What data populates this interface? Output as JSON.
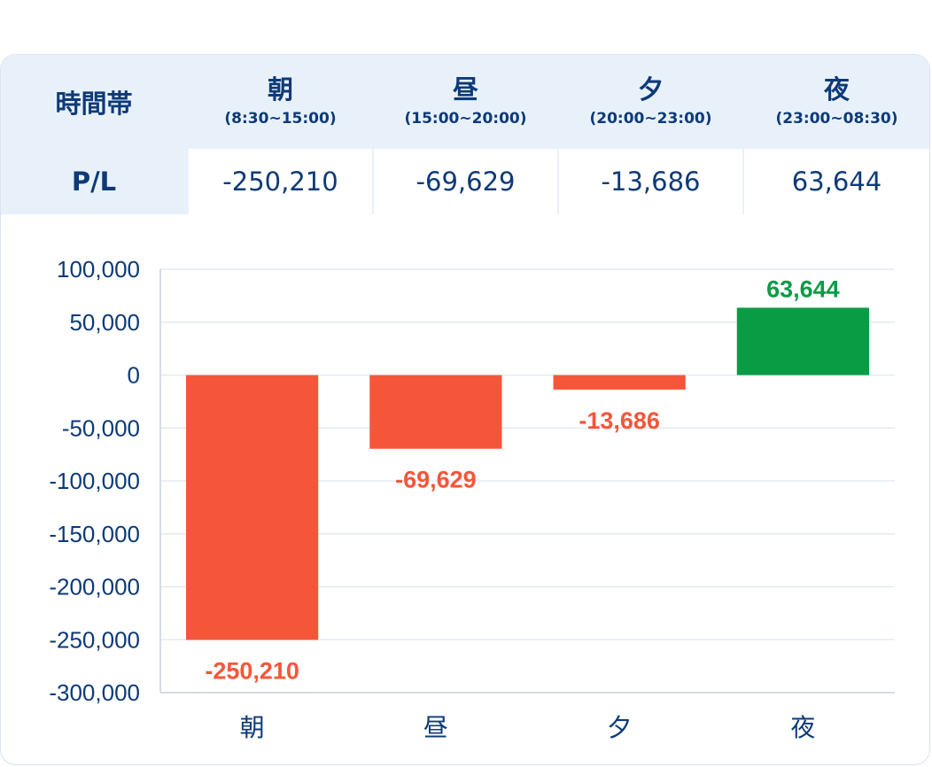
{
  "summary": {
    "header_label": "時間帯",
    "row_label": "P/L",
    "periods": [
      {
        "name": "朝",
        "range": "(8:30~15:00)",
        "pl": "-250,210"
      },
      {
        "name": "昼",
        "range": "(15:00~20:00)",
        "pl": "-69,629"
      },
      {
        "name": "夕",
        "range": "(20:00~23:00)",
        "pl": "-13,686"
      },
      {
        "name": "夜",
        "range": "(23:00~08:30)",
        "pl": "63,644"
      }
    ]
  },
  "colors": {
    "negative": "#f5563a",
    "positive": "#0a9b45",
    "text": "#0d3a78",
    "header_bg": "#e8f1fa",
    "grid": "#e6ebf0"
  },
  "chart_data": {
    "type": "bar",
    "categories": [
      "朝",
      "昼",
      "夕",
      "夜"
    ],
    "values": [
      -250210,
      -69629,
      -13686,
      63644
    ],
    "data_labels": [
      "-250,210",
      "-69,629",
      "-13,686",
      "63,644"
    ],
    "ylim": [
      -300000,
      100000
    ],
    "yticks": [
      100000,
      50000,
      0,
      -50000,
      -100000,
      -150000,
      -200000,
      -250000,
      -300000
    ],
    "ytick_labels": [
      "100,000",
      "50,000",
      "0",
      "-50,000",
      "-100,000",
      "-150,000",
      "-200,000",
      "-250,000",
      "-300,000"
    ],
    "grid": true,
    "title": "",
    "xlabel": "",
    "ylabel": ""
  }
}
